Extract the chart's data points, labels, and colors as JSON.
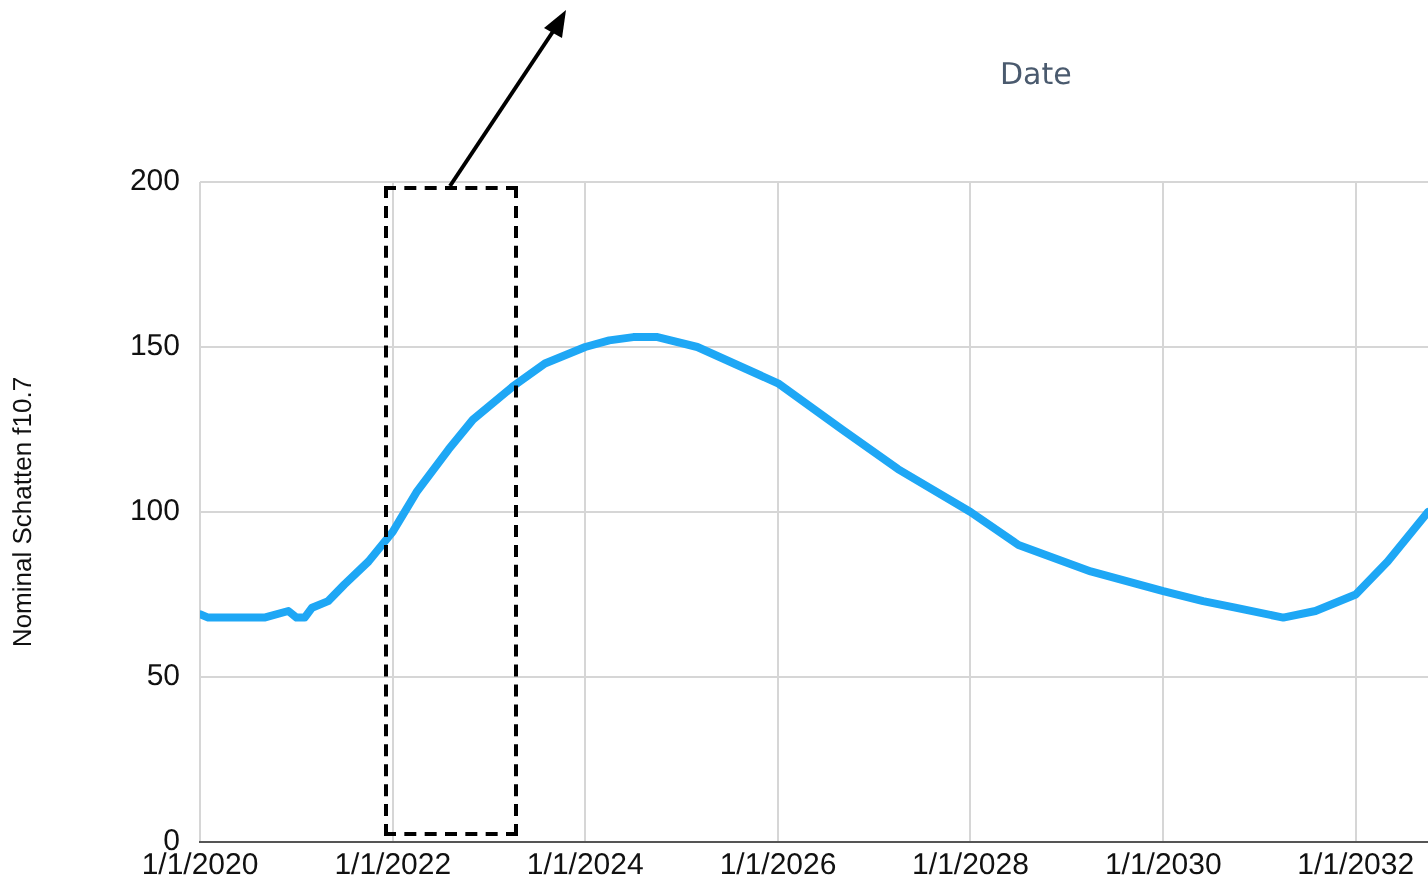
{
  "chart_data": {
    "type": "line",
    "xlabel": "Date",
    "ylabel": "Nominal Schatten f10.7",
    "x": [
      "2020-01",
      "2020-02",
      "2020-09",
      "2020-12",
      "2021-01",
      "2021-02",
      "2021-03",
      "2021-05",
      "2021-07",
      "2021-10",
      "2022-01",
      "2022-04",
      "2022-08",
      "2022-11",
      "2023-04",
      "2023-08",
      "2024-01",
      "2024-04",
      "2024-07",
      "2024-10",
      "2025-03",
      "2026-01",
      "2026-09",
      "2027-04",
      "2028-01",
      "2028-07",
      "2029-04",
      "2030-01",
      "2030-06",
      "2030-10",
      "2031-04",
      "2031-08",
      "2032-01",
      "2032-05",
      "2032-10"
    ],
    "series": [
      {
        "color": "#1ea7f5",
        "values": [
          69,
          68,
          68,
          70,
          68,
          68,
          71,
          73,
          78,
          85,
          94,
          106,
          119,
          128,
          138,
          145,
          150,
          152,
          153,
          153,
          150,
          139,
          125,
          113,
          100,
          90,
          82,
          76,
          73,
          71,
          68,
          70,
          75,
          85,
          100
        ]
      }
    ],
    "xlim": [
      "2020-01-01",
      "2032-10-01"
    ],
    "xticks": [
      {
        "value": "2020-01-01",
        "label": "1/1/2020"
      },
      {
        "value": "2022-01-01",
        "label": "1/1/2022"
      },
      {
        "value": "2024-01-01",
        "label": "1/1/2024"
      },
      {
        "value": "2026-01-01",
        "label": "1/1/2026"
      },
      {
        "value": "2028-01-01",
        "label": "1/1/2028"
      },
      {
        "value": "2030-01-01",
        "label": "1/1/2030"
      },
      {
        "value": "2032-01-01",
        "label": "1/1/2032"
      }
    ],
    "ylim": [
      0,
      200
    ],
    "yticks": [
      0,
      50,
      100,
      150,
      200
    ],
    "grid": true,
    "marker": "none",
    "line_style": "solid"
  }
}
